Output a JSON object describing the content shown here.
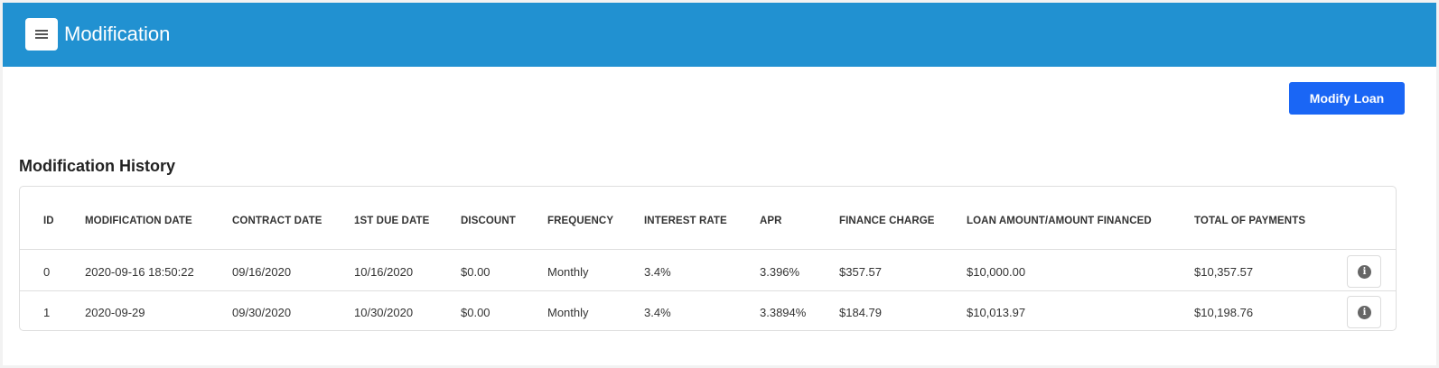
{
  "header": {
    "title": "Modification"
  },
  "actions": {
    "modify_label": "Modify Loan"
  },
  "section": {
    "title": "Modification History"
  },
  "icons": {
    "menu": "menu-icon",
    "info": "info-icon"
  },
  "colors": {
    "header_bg": "#2191d1",
    "primary_button": "#1a66f5"
  },
  "table": {
    "headers": [
      "ID",
      "MODIFICATION DATE",
      "CONTRACT DATE",
      "1ST DUE DATE",
      "DISCOUNT",
      "FREQUENCY",
      "INTEREST RATE",
      "APR",
      "FINANCE CHARGE",
      "LOAN AMOUNT/AMOUNT FINANCED",
      "TOTAL OF PAYMENTS"
    ],
    "rows": [
      [
        "0",
        "2020-09-16 18:50:22",
        "09/16/2020",
        "10/16/2020",
        "$0.00",
        "Monthly",
        "3.4%",
        "3.396%",
        "$357.57",
        "$10,000.00",
        "$10,357.57"
      ],
      [
        "1",
        "2020-09-29",
        "09/30/2020",
        "10/30/2020",
        "$0.00",
        "Monthly",
        "3.4%",
        "3.3894%",
        "$184.79",
        "$10,013.97",
        "$10,198.76"
      ]
    ]
  }
}
